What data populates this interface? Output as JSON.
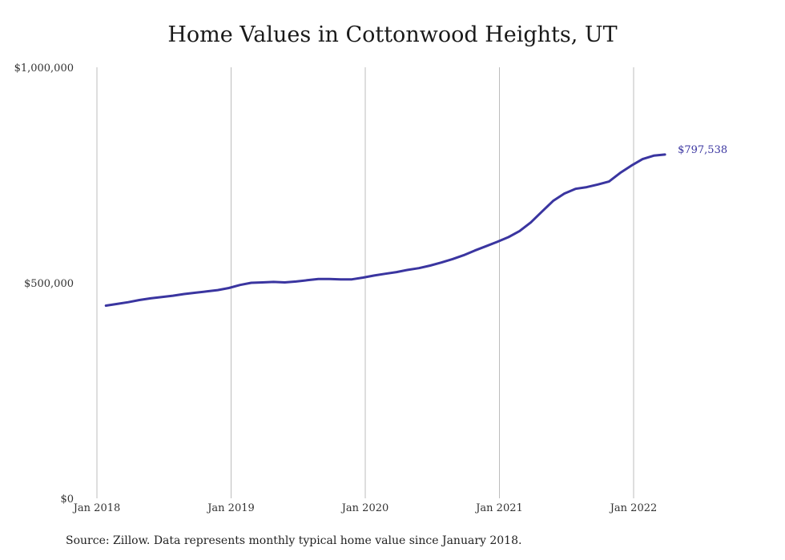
{
  "chart_data": {
    "type": "line",
    "title": "Home Values in Cottonwood Heights, UT",
    "source_note": "Source: Zillow. Data represents monthly typical home value since January 2018.",
    "xlabel": "",
    "ylabel": "",
    "x_ticks": [
      "Jan 2018",
      "Jan 2019",
      "Jan 2020",
      "Jan 2021",
      "Jan 2022"
    ],
    "y_ticks": [
      "$0",
      "$500,000",
      "$1,000,000"
    ],
    "ylim": [
      0,
      1000000
    ],
    "x_start": "2018-02",
    "grid": "vertical",
    "line_color": "#3a35a0",
    "end_label": "$797,538",
    "series": [
      {
        "values": [
          447000,
          451000,
          455000,
          460000,
          464000,
          467000,
          470000,
          474000,
          477000,
          480000,
          483000,
          488000,
          495000,
          500000,
          501000,
          502000,
          501000,
          503000,
          506000,
          509000,
          509000,
          508000,
          508000,
          512000,
          517000,
          521000,
          525000,
          530000,
          534000,
          540000,
          547000,
          555000,
          564000,
          575000,
          585000,
          595000,
          606000,
          620000,
          640000,
          665000,
          690000,
          707000,
          718000,
          722000,
          728000,
          735000,
          755000,
          772000,
          787000,
          795000,
          797538
        ]
      }
    ]
  }
}
